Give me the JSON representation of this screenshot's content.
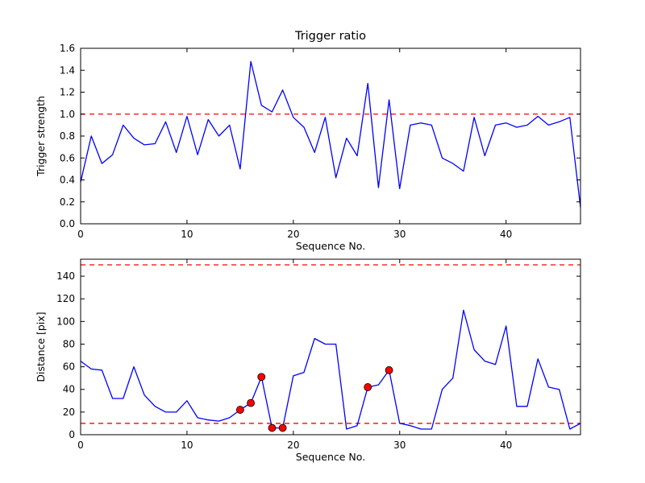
{
  "figure": {
    "background": "#ffffff",
    "line_color": "#0000ff",
    "threshold_color": "#ff0000",
    "marker_color": "#ff0000"
  },
  "chart_data": [
    {
      "type": "line",
      "title": "Trigger ratio",
      "xlabel": "Sequence No.",
      "ylabel": "Trigger strength",
      "xlim": [
        0,
        47
      ],
      "ylim": [
        0,
        1.6
      ],
      "xticks": [
        0,
        10,
        20,
        30,
        40
      ],
      "xtick_labels": [
        "0",
        "10",
        "20",
        "30",
        "40"
      ],
      "yticks": [
        0,
        0.2,
        0.4,
        0.6,
        0.8,
        1.0,
        1.2,
        1.4,
        1.6
      ],
      "ytick_labels": [
        "0.0",
        "0.2",
        "0.4",
        "0.6",
        "0.8",
        "1.0",
        "1.2",
        "1.4",
        "1.6"
      ],
      "thresholds": [
        1.0
      ],
      "legend": "none",
      "grid": false,
      "x": [
        0,
        1,
        2,
        3,
        4,
        5,
        6,
        7,
        8,
        9,
        10,
        11,
        12,
        13,
        14,
        15,
        16,
        17,
        18,
        19,
        20,
        21,
        22,
        23,
        24,
        25,
        26,
        27,
        28,
        29,
        30,
        31,
        32,
        33,
        34,
        35,
        36,
        37,
        38,
        39,
        40,
        41,
        42,
        43,
        44,
        45,
        46,
        47
      ],
      "y": [
        0.38,
        0.8,
        0.55,
        0.63,
        0.9,
        0.78,
        0.72,
        0.73,
        0.93,
        0.65,
        0.98,
        0.63,
        0.95,
        0.8,
        0.9,
        0.5,
        1.48,
        1.08,
        1.02,
        1.22,
        0.97,
        0.88,
        0.65,
        0.97,
        0.42,
        0.78,
        0.62,
        1.28,
        0.33,
        1.13,
        0.32,
        0.9,
        0.92,
        0.9,
        0.6,
        0.55,
        0.48,
        0.97,
        0.62,
        0.9,
        0.92,
        0.88,
        0.9,
        0.98,
        0.9,
        0.93,
        0.97,
        0.15
      ],
      "markers": []
    },
    {
      "type": "line",
      "title": "",
      "xlabel": "Sequence No.",
      "ylabel": "Distance [pix]",
      "xlim": [
        0,
        47
      ],
      "ylim": [
        0,
        155
      ],
      "xticks": [
        0,
        10,
        20,
        30,
        40
      ],
      "xtick_labels": [
        "0",
        "10",
        "20",
        "30",
        "40"
      ],
      "yticks": [
        0,
        20,
        40,
        60,
        80,
        100,
        120,
        140
      ],
      "ytick_labels": [
        "0",
        "20",
        "40",
        "60",
        "80",
        "100",
        "120",
        "140"
      ],
      "thresholds": [
        10,
        150
      ],
      "legend": "none",
      "grid": false,
      "x": [
        0,
        1,
        2,
        3,
        4,
        5,
        6,
        7,
        8,
        9,
        10,
        11,
        12,
        13,
        14,
        15,
        16,
        17,
        18,
        19,
        20,
        21,
        22,
        23,
        24,
        25,
        26,
        27,
        28,
        29,
        30,
        31,
        32,
        33,
        34,
        35,
        36,
        37,
        38,
        39,
        40,
        41,
        42,
        43,
        44,
        45,
        46,
        47
      ],
      "y": [
        65,
        58,
        57,
        32,
        32,
        60,
        35,
        25,
        20,
        20,
        30,
        15,
        13,
        12,
        15,
        22,
        28,
        51,
        6,
        6,
        52,
        55,
        85,
        80,
        80,
        5,
        8,
        42,
        44,
        57,
        10,
        8,
        5,
        5,
        40,
        50,
        110,
        75,
        65,
        62,
        96,
        25,
        25,
        67,
        42,
        40,
        5,
        10
      ],
      "markers": [
        [
          15,
          22
        ],
        [
          16,
          28
        ],
        [
          17,
          51
        ],
        [
          18,
          6
        ],
        [
          19,
          6
        ],
        [
          27,
          42
        ],
        [
          29,
          57
        ]
      ]
    }
  ]
}
